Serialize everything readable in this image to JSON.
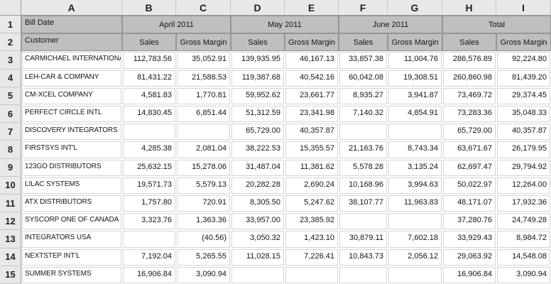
{
  "sheet": {
    "columns": [
      "A",
      "B",
      "C",
      "D",
      "E",
      "F",
      "G",
      "H",
      "I"
    ],
    "header_row_numbers": [
      "1",
      "2"
    ],
    "bill_date_label": "Bill Date",
    "customer_label": "Customer",
    "groups": [
      {
        "label": "April 2011",
        "sub": [
          "Sales",
          "Gross Margin"
        ]
      },
      {
        "label": "May 2011",
        "sub": [
          "Sales",
          "Gross Margin"
        ]
      },
      {
        "label": "June 2011",
        "sub": [
          "Sales",
          "Gross Margin"
        ]
      },
      {
        "label": "Total",
        "sub": [
          "Sales",
          "Gross Margin"
        ]
      }
    ],
    "rows": [
      {
        "num": "3",
        "customer": "CARMICHAEL INTERNATIONAL",
        "values": [
          "112,783.56",
          "35,052.91",
          "139,935.95",
          "46,167.13",
          "33,857.38",
          "11,004.76",
          "286,576.89",
          "92,224.80"
        ]
      },
      {
        "num": "4",
        "customer": "LEH-CAR & COMPANY",
        "values": [
          "81,431.22",
          "21,588.53",
          "119,387.68",
          "40,542.16",
          "60,042.08",
          "19,308.51",
          "260,860.98",
          "81,439.20"
        ]
      },
      {
        "num": "5",
        "customer": "CM-XCEL COMPANY",
        "values": [
          "4,581.83",
          "1,770.81",
          "59,952.62",
          "23,661.77",
          "8,935.27",
          "3,941.87",
          "73,469.72",
          "29,374.45"
        ]
      },
      {
        "num": "6",
        "customer": "PERFECT CIRCLE INTL",
        "values": [
          "14,830.45",
          "6,851.44",
          "51,312.59",
          "23,341.98",
          "7,140.32",
          "4,854.91",
          "73,283.36",
          "35,048.33"
        ]
      },
      {
        "num": "7",
        "customer": "DISCOVERY INTEGRATORS",
        "values": [
          "",
          "",
          "65,729.00",
          "40,357.87",
          "",
          "",
          "65,729.00",
          "40,357.87"
        ]
      },
      {
        "num": "8",
        "customer": "FIRSTSYS INT'L",
        "values": [
          "4,285.38",
          "2,081.04",
          "38,222.53",
          "15,355.57",
          "21,163.76",
          "8,743.34",
          "63,671.67",
          "26,179.95"
        ]
      },
      {
        "num": "9",
        "customer": "123GO DISTRIBUTORS",
        "values": [
          "25,632.15",
          "15,278.06",
          "31,487.04",
          "11,381.62",
          "5,578.28",
          "3,135.24",
          "62,697.47",
          "29,794.92"
        ]
      },
      {
        "num": "10",
        "customer": "LILAC SYSTEMS",
        "values": [
          "19,571.73",
          "5,579.13",
          "20,282.28",
          "2,690.24",
          "10,168.96",
          "3,994.63",
          "50,022.97",
          "12,264.00"
        ]
      },
      {
        "num": "11",
        "customer": "ATX DISTRIBUTORS",
        "values": [
          "1,757.80",
          "720.91",
          "8,305.50",
          "5,247.62",
          "38,107.77",
          "11,963.83",
          "48,171.07",
          "17,932.36"
        ]
      },
      {
        "num": "12",
        "customer": "SYSCORP ONE OF CANADA",
        "values": [
          "3,323.76",
          "1,363.36",
          "33,957.00",
          "23,385.92",
          "",
          "",
          "37,280.76",
          "24,749.28"
        ]
      },
      {
        "num": "13",
        "customer": "INTEGRATORS USA",
        "values": [
          "",
          "(40.56)",
          "3,050.32",
          "1,423.10",
          "30,879.11",
          "7,602.18",
          "33,929.43",
          "8,984.72"
        ]
      },
      {
        "num": "14",
        "customer": "NEXTSTEP INT'L",
        "values": [
          "7,192.04",
          "5,265.55",
          "11,028.15",
          "7,226.41",
          "10,843.73",
          "2,056.12",
          "29,063.92",
          "14,548.08"
        ]
      },
      {
        "num": "15",
        "customer": "SUMMER SYSTEMS",
        "values": [
          "16,906.84",
          "3,090.94",
          "",
          "",
          "",
          "",
          "16,906.84",
          "3,090.94"
        ]
      }
    ],
    "colors": {
      "header_fill": "#bfbfbf",
      "header_border": "#959595",
      "frame_fill": "#e8e8e8",
      "frame_border": "#9c9c9c",
      "cell_border": "#d4d4d4",
      "text": "#151515"
    }
  }
}
